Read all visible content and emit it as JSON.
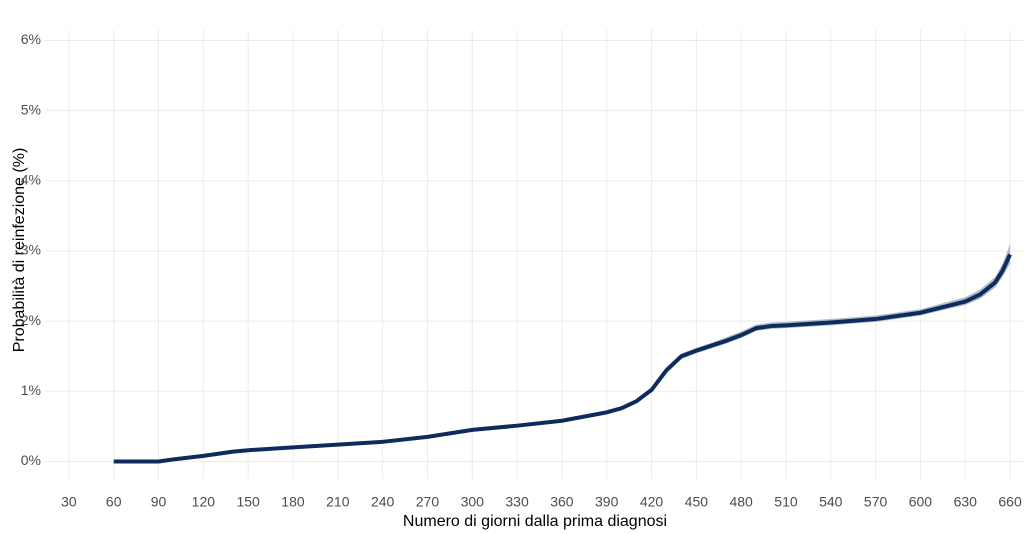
{
  "chart_data": {
    "type": "line",
    "x_label": "Numero di giorni dalla prima diagnosi",
    "y_label": "Probabilità di reinfezione (%)",
    "x": [
      60,
      90,
      100,
      120,
      140,
      150,
      180,
      210,
      240,
      270,
      300,
      330,
      360,
      390,
      400,
      410,
      420,
      430,
      440,
      450,
      460,
      470,
      480,
      490,
      500,
      510,
      540,
      570,
      600,
      630,
      640,
      650,
      655,
      660
    ],
    "values": [
      0,
      0,
      0.03,
      0.08,
      0.14,
      0.16,
      0.2,
      0.24,
      0.28,
      0.35,
      0.45,
      0.51,
      0.58,
      0.7,
      0.76,
      0.86,
      1.02,
      1.3,
      1.5,
      1.58,
      1.65,
      1.72,
      1.8,
      1.9,
      1.93,
      1.94,
      1.98,
      2.03,
      2.12,
      2.28,
      2.38,
      2.55,
      2.72,
      2.95
    ],
    "lower": [
      0,
      0,
      0.02,
      0.07,
      0.12,
      0.14,
      0.18,
      0.22,
      0.26,
      0.33,
      0.43,
      0.49,
      0.56,
      0.68,
      0.73,
      0.83,
      0.99,
      1.26,
      1.46,
      1.54,
      1.61,
      1.68,
      1.76,
      1.86,
      1.89,
      1.9,
      1.94,
      1.99,
      2.08,
      2.23,
      2.32,
      2.48,
      2.63,
      2.82
    ],
    "upper": [
      0,
      0.01,
      0.04,
      0.09,
      0.16,
      0.18,
      0.22,
      0.26,
      0.3,
      0.37,
      0.47,
      0.53,
      0.6,
      0.72,
      0.79,
      0.89,
      1.05,
      1.34,
      1.54,
      1.62,
      1.69,
      1.77,
      1.85,
      1.95,
      1.98,
      1.99,
      2.03,
      2.08,
      2.17,
      2.34,
      2.45,
      2.63,
      2.82,
      3.1
    ],
    "color": "#0d2b5c",
    "band_color": "#9aa8bd",
    "xlim": [
      14,
      670
    ],
    "ylim": [
      -0.25,
      6.15
    ],
    "xticks": [
      30,
      60,
      90,
      120,
      150,
      180,
      210,
      240,
      270,
      300,
      330,
      360,
      390,
      420,
      450,
      480,
      510,
      540,
      570,
      600,
      630,
      660
    ],
    "yticks": [
      {
        "value": 0,
        "label": "0%"
      },
      {
        "value": 1,
        "label": "1%"
      },
      {
        "value": 2,
        "label": "2%"
      },
      {
        "value": 3,
        "label": "3%"
      },
      {
        "value": 4,
        "label": "4%"
      },
      {
        "value": 5,
        "label": "5%"
      },
      {
        "value": 6,
        "label": "6%"
      }
    ],
    "grid": true
  }
}
